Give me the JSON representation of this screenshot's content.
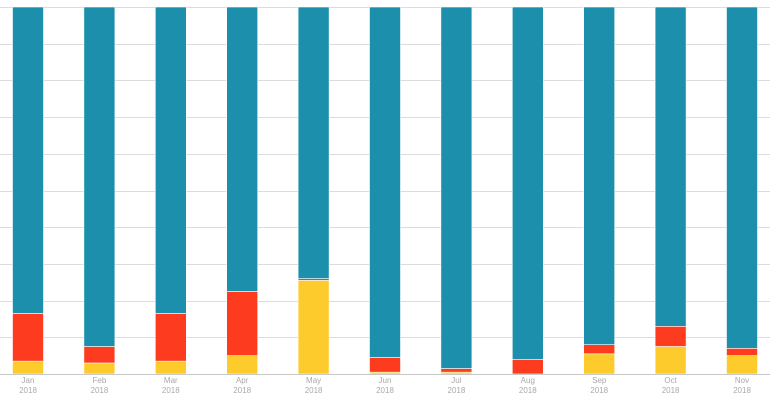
{
  "chart_data": {
    "type": "bar",
    "stacked": true,
    "normalized": true,
    "categories": [
      {
        "month": "Jan",
        "year": "2018"
      },
      {
        "month": "Feb",
        "year": "2018"
      },
      {
        "month": "Mar",
        "year": "2018"
      },
      {
        "month": "Apr",
        "year": "2018"
      },
      {
        "month": "May",
        "year": "2018"
      },
      {
        "month": "Jun",
        "year": "2018"
      },
      {
        "month": "Jul",
        "year": "2018"
      },
      {
        "month": "Aug",
        "year": "2018"
      },
      {
        "month": "Sep",
        "year": "2018"
      },
      {
        "month": "Oct",
        "year": "2018"
      },
      {
        "month": "Nov",
        "year": "2018"
      }
    ],
    "series": [
      {
        "color": "#fdcb2c",
        "values": [
          3.5,
          3,
          3.5,
          5,
          25.5,
          0.5,
          0.5,
          0,
          5.5,
          7.5,
          5
        ]
      },
      {
        "color": "#fc3b1f",
        "values": [
          13,
          4.5,
          13,
          17.5,
          0.5,
          4,
          1,
          4,
          2.5,
          5.5,
          2
        ]
      },
      {
        "color": "#1b8fab",
        "values": [
          83.5,
          92.5,
          83.5,
          77.5,
          74,
          95.5,
          98.5,
          96,
          92,
          87,
          93
        ]
      }
    ],
    "ylim": [
      0,
      100
    ],
    "grid": true,
    "legend": "none"
  }
}
